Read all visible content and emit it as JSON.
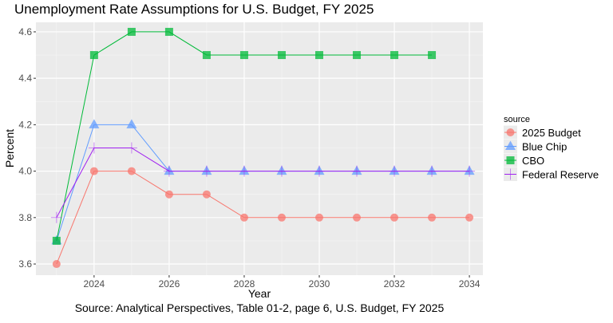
{
  "chart_data": {
    "type": "line",
    "title": "Unemployment Rate Assumptions for U.S. Budget, FY 2025",
    "xlabel": "Year",
    "ylabel": "Percent",
    "caption": "Source: Analytical Perspectives, Table 01-2, page 6, U.S. Budget, FY 2025",
    "xlim": [
      2022.45,
      2034.36
    ],
    "ylim": [
      3.552,
      4.641
    ],
    "xticks": [
      2024,
      2026,
      2028,
      2030,
      2032,
      2034
    ],
    "xtick_labels": [
      "2024",
      "2026",
      "2028",
      "2030",
      "2032",
      "2034"
    ],
    "yticks": [
      3.6,
      3.8,
      4.0,
      4.2,
      4.4,
      4.6
    ],
    "ytick_labels": [
      "3.6",
      "3.8",
      "4.0",
      "4.2",
      "4.4",
      "4.6"
    ],
    "grid": true,
    "legend": {
      "title": "source",
      "placement": "right"
    },
    "series": [
      {
        "name": "2025 Budget",
        "color": "#F8766D",
        "shape": "circle",
        "x": [
          2023,
          2024,
          2025,
          2026,
          2027,
          2028,
          2029,
          2030,
          2031,
          2032,
          2033,
          2034
        ],
        "values": [
          3.6,
          4.0,
          4.0,
          3.9,
          3.9,
          3.8,
          3.8,
          3.8,
          3.8,
          3.8,
          3.8,
          3.8
        ]
      },
      {
        "name": "Blue Chip",
        "color": "#619CFF",
        "shape": "triangle",
        "x": [
          2023,
          2024,
          2025,
          2026,
          2027,
          2028,
          2029,
          2030,
          2031,
          2032,
          2033,
          2034
        ],
        "values": [
          3.7,
          4.2,
          4.2,
          4.0,
          4.0,
          4.0,
          4.0,
          4.0,
          4.0,
          4.0,
          4.0,
          4.0
        ]
      },
      {
        "name": "CBO",
        "color": "#00BA38",
        "shape": "square",
        "x": [
          2023,
          2024,
          2025,
          2026,
          2027,
          2028,
          2029,
          2030,
          2031,
          2032,
          2033
        ],
        "values": [
          3.7,
          4.5,
          4.6,
          4.6,
          4.5,
          4.5,
          4.5,
          4.5,
          4.5,
          4.5,
          4.5
        ]
      },
      {
        "name": "Federal Reserve",
        "color": "#A020F0",
        "shape": "plus",
        "x": [
          2023,
          2024,
          2025,
          2026,
          2027,
          2028,
          2029,
          2030,
          2031,
          2032,
          2033,
          2034
        ],
        "values": [
          3.8,
          4.1,
          4.1,
          4.0,
          4.0,
          4.0,
          4.0,
          4.0,
          4.0,
          4.0,
          4.0,
          4.0
        ]
      }
    ]
  }
}
